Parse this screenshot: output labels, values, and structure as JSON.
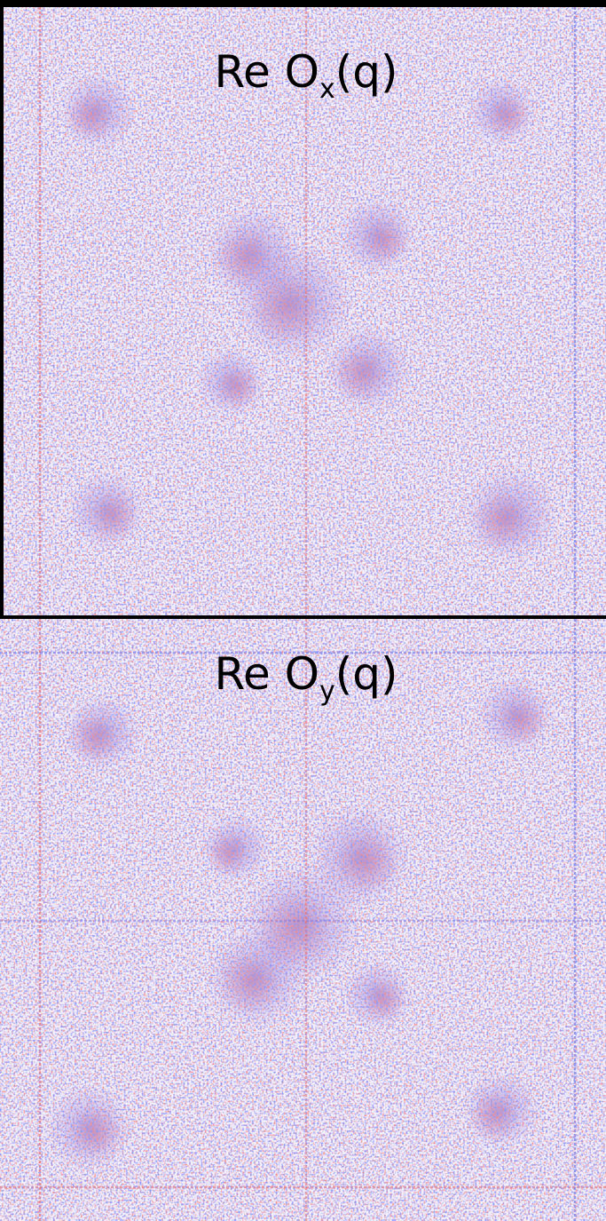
{
  "panels": [
    {
      "label": {
        "main": "Re O",
        "subscript": "x",
        "suffix": "(q)"
      }
    },
    {
      "label": {
        "main": "Re O",
        "subscript": "y",
        "suffix": "(q)"
      }
    }
  ]
}
